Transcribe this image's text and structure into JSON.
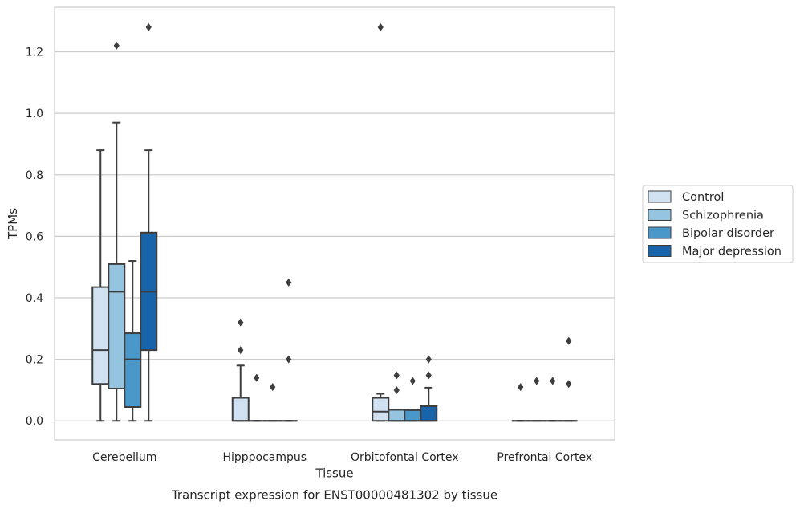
{
  "chart_data": {
    "type": "box",
    "caption": "Transcript expression for ENST00000481302 by tissue",
    "xlabel": "Tissue",
    "ylabel": "TPMs",
    "ylim": [
      -0.062,
      1.345
    ],
    "yticks": [
      0.0,
      0.2,
      0.4,
      0.6,
      0.8,
      1.0,
      1.2
    ],
    "ytick_labels": [
      "0.0",
      "0.2",
      "0.4",
      "0.6",
      "0.8",
      "1.0",
      "1.2"
    ],
    "grid": true,
    "legend_position": "right",
    "categories": [
      "Cerebellum",
      "Hipppocampus",
      "Orbitofontal Cortex",
      "Prefrontal Cortex"
    ],
    "series": [
      {
        "name": "Control",
        "color": "#d0e1f2",
        "boxes": [
          {
            "whislo": 0.0,
            "q1": 0.12,
            "med": 0.23,
            "q3": 0.435,
            "whishi": 0.88,
            "fliers": []
          },
          {
            "whislo": 0.0,
            "q1": 0.0,
            "med": 0.0,
            "q3": 0.075,
            "whishi": 0.18,
            "fliers": [
              0.23,
              0.32
            ]
          },
          {
            "whislo": 0.0,
            "q1": 0.0,
            "med": 0.03,
            "q3": 0.075,
            "whishi": 0.088,
            "fliers": [
              1.28
            ]
          },
          {
            "whislo": 0.0,
            "q1": 0.0,
            "med": 0.0,
            "q3": 0.0,
            "whishi": 0.0,
            "fliers": [
              0.11
            ]
          }
        ]
      },
      {
        "name": "Schizophrenia",
        "color": "#94c4df",
        "boxes": [
          {
            "whislo": 0.0,
            "q1": 0.105,
            "med": 0.42,
            "q3": 0.51,
            "whishi": 0.97,
            "fliers": [
              1.22
            ]
          },
          {
            "whislo": 0.0,
            "q1": 0.0,
            "med": 0.0,
            "q3": 0.0,
            "whishi": 0.0,
            "fliers": [
              0.14
            ]
          },
          {
            "whislo": 0.0,
            "q1": 0.0,
            "med": 0.0,
            "q3": 0.036,
            "whishi": 0.036,
            "fliers": [
              0.1,
              0.148
            ]
          },
          {
            "whislo": 0.0,
            "q1": 0.0,
            "med": 0.0,
            "q3": 0.0,
            "whishi": 0.0,
            "fliers": [
              0.13
            ]
          }
        ]
      },
      {
        "name": "Bipolar disorder",
        "color": "#4a98c9",
        "boxes": [
          {
            "whislo": 0.0,
            "q1": 0.045,
            "med": 0.2,
            "q3": 0.285,
            "whishi": 0.52,
            "fliers": []
          },
          {
            "whislo": 0.0,
            "q1": 0.0,
            "med": 0.0,
            "q3": 0.0,
            "whishi": 0.0,
            "fliers": [
              0.11
            ]
          },
          {
            "whislo": 0.0,
            "q1": 0.0,
            "med": 0.0,
            "q3": 0.035,
            "whishi": 0.035,
            "fliers": [
              0.13
            ]
          },
          {
            "whislo": 0.0,
            "q1": 0.0,
            "med": 0.0,
            "q3": 0.0,
            "whishi": 0.0,
            "fliers": [
              0.13
            ]
          }
        ]
      },
      {
        "name": "Major depression",
        "color": "#1764ab",
        "boxes": [
          {
            "whislo": 0.0,
            "q1": 0.23,
            "med": 0.42,
            "q3": 0.612,
            "whishi": 0.88,
            "fliers": [
              1.28
            ]
          },
          {
            "whislo": 0.0,
            "q1": 0.0,
            "med": 0.0,
            "q3": 0.0,
            "whishi": 0.0,
            "fliers": [
              0.2,
              0.45
            ]
          },
          {
            "whislo": 0.0,
            "q1": 0.0,
            "med": 0.0,
            "q3": 0.048,
            "whishi": 0.108,
            "fliers": [
              0.148,
              0.2
            ]
          },
          {
            "whislo": 0.0,
            "q1": 0.0,
            "med": 0.0,
            "q3": 0.0,
            "whishi": 0.0,
            "fliers": [
              0.12,
              0.26
            ]
          }
        ]
      }
    ],
    "style": {
      "grid_color": "#cccccc",
      "frame_color": "#cccccc",
      "line_color": "#3d3d3d",
      "flier_color": "#3d3d3d"
    }
  }
}
